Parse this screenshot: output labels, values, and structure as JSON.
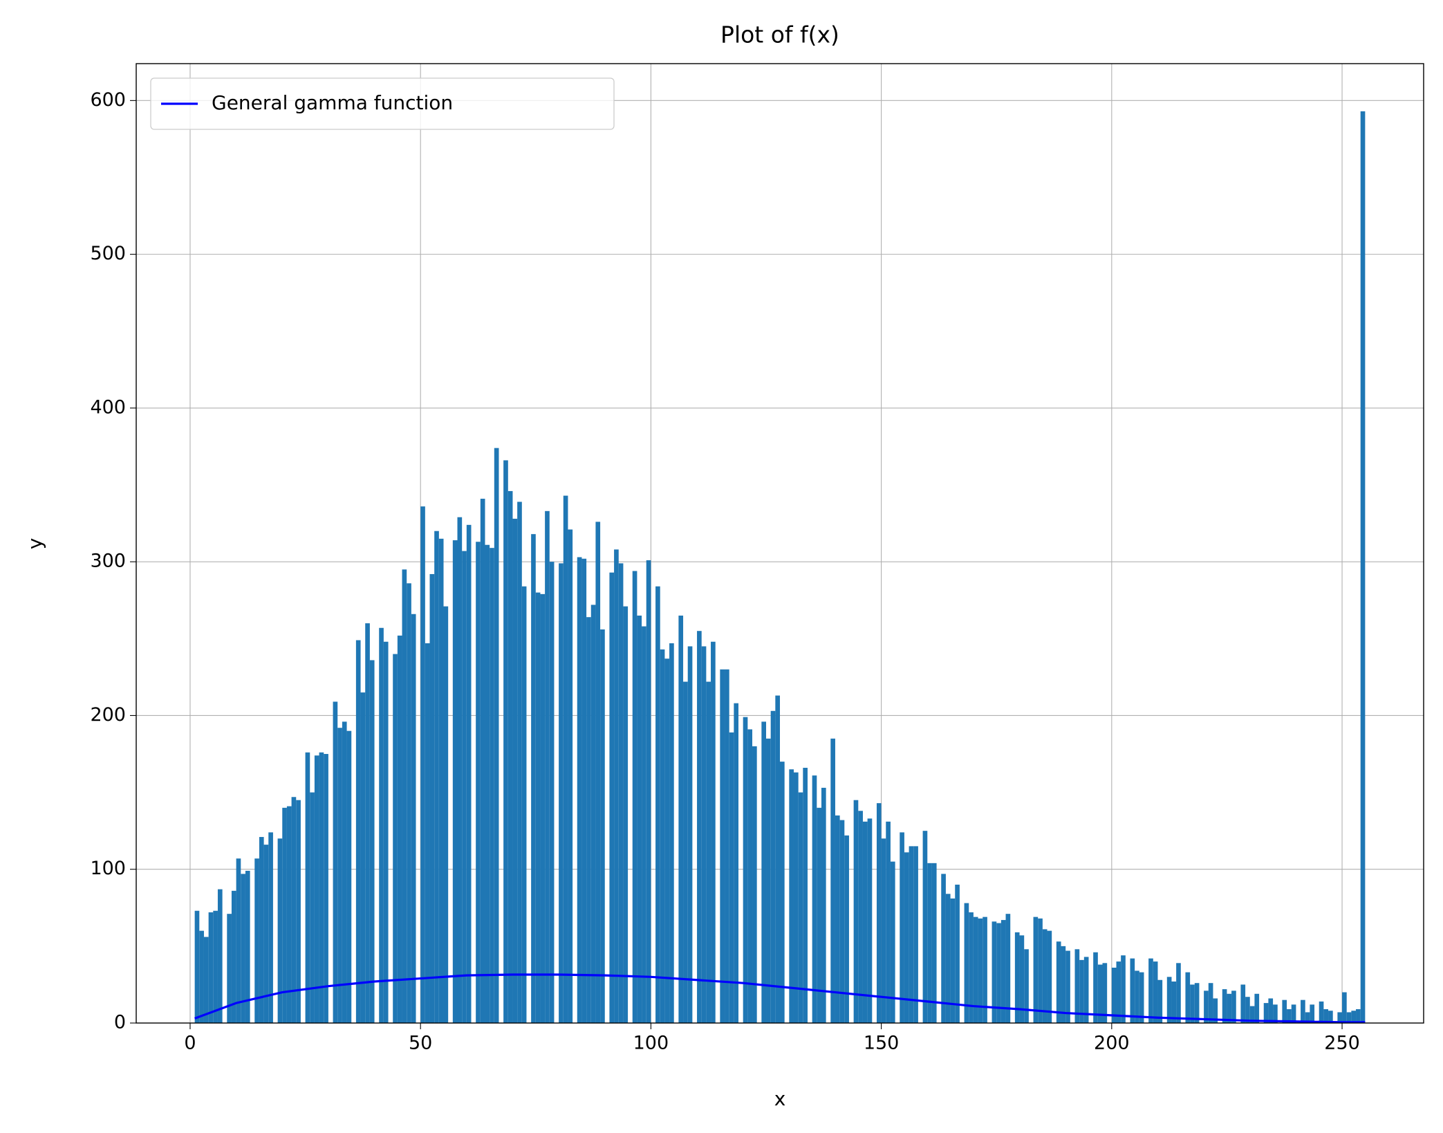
{
  "chart_data": {
    "type": "histogram",
    "title": "Plot of f(x)",
    "x_label": "x",
    "y_label": "y",
    "color": "#1f77b4",
    "bins": [
      1,
      2,
      3,
      4,
      5,
      6,
      7,
      8,
      9,
      10,
      11,
      12,
      13,
      14,
      15,
      16,
      17,
      18,
      19,
      20,
      21,
      22,
      23,
      24,
      25,
      26,
      27,
      28,
      29,
      30,
      31,
      32,
      33,
      34,
      35,
      36,
      37,
      38,
      39,
      40,
      41,
      42,
      43,
      44,
      45,
      46,
      47,
      48,
      49,
      50,
      51,
      52,
      53,
      54,
      55,
      56,
      57,
      58,
      59,
      60,
      61,
      62,
      63,
      64,
      65,
      66,
      67,
      68,
      69,
      70,
      71,
      72,
      73,
      74,
      75,
      76,
      77,
      78,
      79,
      80,
      81,
      82,
      83,
      84,
      85,
      86,
      87,
      88,
      89,
      90,
      91,
      92,
      93,
      94,
      95,
      96,
      97,
      98,
      99,
      100,
      101,
      102,
      103,
      104,
      105,
      106,
      107,
      108,
      109,
      110,
      111,
      112,
      113,
      114,
      115,
      116,
      117,
      118,
      119,
      120,
      121,
      122,
      123,
      124,
      125,
      126,
      127,
      128,
      129,
      130,
      131,
      132,
      133,
      134,
      135,
      136,
      137,
      138,
      139,
      140,
      141,
      142,
      143,
      144,
      145,
      146,
      147,
      148,
      149,
      150,
      151,
      152,
      153,
      154,
      155,
      156,
      157,
      158,
      159,
      160,
      161,
      162,
      163,
      164,
      165,
      166,
      167,
      168,
      169,
      170,
      171,
      172,
      173,
      174,
      175,
      176,
      177,
      178,
      179,
      180,
      181,
      182,
      183,
      184,
      185,
      186,
      187,
      188,
      189,
      190,
      191,
      192,
      193,
      194,
      195,
      196,
      197,
      198,
      199,
      200,
      201,
      202,
      203,
      204,
      205,
      206,
      207,
      208,
      209,
      210,
      211,
      212,
      213,
      214,
      215,
      216,
      217,
      218,
      219,
      220,
      221,
      222,
      223,
      224,
      225,
      226,
      227,
      228,
      229,
      230,
      231,
      232,
      233,
      234,
      235,
      236,
      237,
      238,
      239,
      240,
      241,
      242,
      243,
      244,
      245,
      246,
      247,
      248,
      249,
      250,
      251,
      252,
      253,
      254,
      255
    ],
    "counts": [
      73,
      60,
      56,
      72,
      73,
      87,
      0,
      71,
      86,
      107,
      97,
      99,
      0,
      107,
      121,
      116,
      124,
      0,
      120,
      140,
      141,
      147,
      145,
      0,
      176,
      150,
      174,
      176,
      175,
      0,
      209,
      192,
      196,
      190,
      0,
      249,
      215,
      260,
      236,
      0,
      257,
      248,
      0,
      240,
      252,
      295,
      286,
      266,
      0,
      336,
      247,
      292,
      320,
      315,
      271,
      0,
      314,
      329,
      307,
      324,
      0,
      313,
      341,
      311,
      309,
      374,
      0,
      366,
      346,
      328,
      339,
      284,
      0,
      318,
      280,
      279,
      333,
      300,
      0,
      299,
      343,
      321,
      0,
      303,
      302,
      264,
      272,
      326,
      256,
      0,
      293,
      308,
      299,
      271,
      0,
      294,
      265,
      258,
      301,
      0,
      284,
      243,
      237,
      247,
      0,
      265,
      222,
      245,
      0,
      255,
      245,
      222,
      248,
      0,
      230,
      230,
      189,
      208,
      0,
      199,
      191,
      180,
      0,
      196,
      185,
      203,
      213,
      170,
      0,
      165,
      163,
      150,
      166,
      0,
      161,
      140,
      153,
      0,
      185,
      135,
      132,
      122,
      0,
      145,
      138,
      131,
      133,
      0,
      143,
      120,
      131,
      105,
      0,
      124,
      111,
      115,
      115,
      0,
      125,
      104,
      104,
      0,
      97,
      84,
      81,
      90,
      0,
      78,
      72,
      69,
      68,
      69,
      0,
      66,
      65,
      67,
      71,
      0,
      59,
      57,
      48,
      0,
      69,
      68,
      61,
      60,
      0,
      53,
      50,
      47,
      0,
      48,
      41,
      43,
      0,
      46,
      38,
      39,
      0,
      36,
      40,
      44,
      0,
      42,
      34,
      33,
      0,
      42,
      40,
      28,
      0,
      30,
      27,
      39,
      0,
      33,
      25,
      26,
      0,
      21,
      26,
      16,
      0,
      22,
      19,
      21,
      0,
      25,
      17,
      11,
      19,
      0,
      13,
      16,
      12,
      0,
      15,
      9,
      12,
      0,
      15,
      7,
      12,
      0,
      14,
      9,
      8,
      0,
      7,
      20,
      7,
      8,
      9,
      593
    ],
    "series": [
      {
        "name": "General gamma function",
        "color": "#0000ff",
        "x": [
          1,
          10,
          20,
          30,
          40,
          50,
          60,
          70,
          80,
          90,
          100,
          110,
          120,
          130,
          140,
          150,
          160,
          170,
          180,
          190,
          200,
          210,
          220,
          230,
          240,
          250,
          255
        ],
        "values": [
          3,
          13,
          20,
          24,
          27,
          29,
          31,
          31.5,
          31.5,
          31,
          30,
          28,
          26,
          23,
          20,
          17,
          14,
          11,
          9,
          6.5,
          5,
          3.5,
          2.5,
          1.5,
          1,
          0.5,
          0.5
        ]
      }
    ],
    "xlim": [
      -11.7,
      267.7
    ],
    "ylim": [
      0,
      624
    ],
    "xticks": [
      0,
      50,
      100,
      150,
      200,
      250
    ],
    "yticks": [
      0,
      100,
      200,
      300,
      400,
      500,
      600
    ],
    "grid": true,
    "legend_position": "upper left"
  }
}
